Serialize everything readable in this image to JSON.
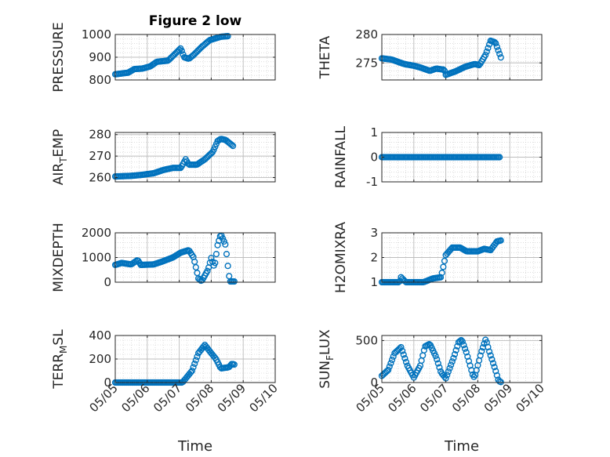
{
  "chart_data": [
    {
      "type": "scatter",
      "title": "Figure 2 low",
      "ylabel": "PRESSURE",
      "ylabel_parts": [
        [
          "PRESSURE",
          "n"
        ]
      ],
      "xlabel": "",
      "xlim": [
        0,
        5
      ],
      "ylim": [
        800,
        1000
      ],
      "yticks": [
        800,
        900,
        1000
      ],
      "xticks": [],
      "grid": true,
      "keyframes": [
        [
          0.0,
          825
        ],
        [
          0.4,
          832
        ],
        [
          0.6,
          848
        ],
        [
          0.85,
          850
        ],
        [
          1.1,
          860
        ],
        [
          1.3,
          880
        ],
        [
          1.65,
          885
        ],
        [
          1.85,
          912
        ],
        [
          2.05,
          940
        ],
        [
          2.15,
          900
        ],
        [
          2.3,
          893
        ],
        [
          2.45,
          910
        ],
        [
          2.7,
          945
        ],
        [
          2.95,
          975
        ],
        [
          3.3,
          990
        ],
        [
          3.55,
          993
        ]
      ]
    },
    {
      "type": "scatter",
      "title": "",
      "ylabel": "THETA",
      "ylabel_parts": [
        [
          "THETA",
          "n"
        ]
      ],
      "xlabel": "",
      "xlim": [
        0,
        5
      ],
      "ylim": [
        272,
        280
      ],
      "yticks": [
        275,
        280
      ],
      "xticks": [],
      "grid": true,
      "keyframes": [
        [
          0.0,
          275.8
        ],
        [
          0.3,
          275.6
        ],
        [
          0.5,
          275.2
        ],
        [
          0.7,
          274.8
        ],
        [
          1.0,
          274.5
        ],
        [
          1.2,
          274.2
        ],
        [
          1.5,
          273.6
        ],
        [
          1.7,
          274.0
        ],
        [
          1.95,
          273.8
        ],
        [
          2.0,
          272.9
        ],
        [
          2.3,
          273.5
        ],
        [
          2.6,
          274.3
        ],
        [
          2.9,
          274.8
        ],
        [
          3.05,
          274.6
        ],
        [
          3.25,
          276.5
        ],
        [
          3.4,
          278.9
        ],
        [
          3.55,
          278.6
        ],
        [
          3.75,
          275.5
        ]
      ]
    },
    {
      "type": "scatter",
      "title": "",
      "ylabel": "AIR_TEMP",
      "ylabel_parts": [
        [
          "AIR",
          "n"
        ],
        [
          "T",
          "sub"
        ],
        [
          "EMP",
          "n"
        ]
      ],
      "xlabel": "",
      "xlim": [
        0,
        5
      ],
      "ylim": [
        258,
        281
      ],
      "yticks": [
        260,
        270,
        280
      ],
      "xticks": [],
      "grid": true,
      "keyframes": [
        [
          0.0,
          260.5
        ],
        [
          0.5,
          260.8
        ],
        [
          0.8,
          261.2
        ],
        [
          1.2,
          262.0
        ],
        [
          1.5,
          263.5
        ],
        [
          1.8,
          264.5
        ],
        [
          2.05,
          264.5
        ],
        [
          2.2,
          268.5
        ],
        [
          2.3,
          266.0
        ],
        [
          2.55,
          266.0
        ],
        [
          2.8,
          268.5
        ],
        [
          3.05,
          272.0
        ],
        [
          3.2,
          277.0
        ],
        [
          3.3,
          278.0
        ],
        [
          3.45,
          277.5
        ],
        [
          3.7,
          274.5
        ]
      ]
    },
    {
      "type": "scatter",
      "title": "",
      "ylabel": "RAINFALL",
      "ylabel_parts": [
        [
          "RAINFALL",
          "n"
        ]
      ],
      "xlabel": "",
      "xlim": [
        0,
        5
      ],
      "ylim": [
        -1,
        1
      ],
      "yticks": [
        -1,
        0,
        1
      ],
      "xticks": [],
      "grid": true,
      "keyframes": [
        [
          0.0,
          0
        ],
        [
          3.7,
          0
        ]
      ]
    },
    {
      "type": "scatter",
      "title": "",
      "ylabel": "MIXDEPTH",
      "ylabel_parts": [
        [
          "MIXDEPTH",
          "n"
        ]
      ],
      "xlabel": "",
      "xlim": [
        0,
        5
      ],
      "ylim": [
        0,
        2000
      ],
      "yticks": [
        0,
        1000,
        2000
      ],
      "xticks": [],
      "grid": true,
      "keyframes": [
        [
          0.0,
          700
        ],
        [
          0.2,
          780
        ],
        [
          0.5,
          720
        ],
        [
          0.7,
          900
        ],
        [
          0.8,
          700
        ],
        [
          1.2,
          720
        ],
        [
          1.5,
          850
        ],
        [
          1.8,
          1000
        ],
        [
          2.05,
          1200
        ],
        [
          2.3,
          1300
        ],
        [
          2.45,
          1000
        ],
        [
          2.6,
          150
        ],
        [
          2.7,
          40
        ],
        [
          2.9,
          500
        ],
        [
          3.0,
          980
        ],
        [
          3.1,
          600
        ],
        [
          3.2,
          1500
        ],
        [
          3.3,
          1950
        ],
        [
          3.45,
          1500
        ],
        [
          3.55,
          300
        ],
        [
          3.6,
          30
        ],
        [
          3.75,
          30
        ]
      ]
    },
    {
      "type": "scatter",
      "title": "",
      "ylabel": "H2OMIXRA",
      "ylabel_parts": [
        [
          "H2OMIXRA",
          "n"
        ]
      ],
      "xlabel": "",
      "xlim": [
        0,
        5
      ],
      "ylim": [
        1,
        3
      ],
      "yticks": [
        1,
        2,
        3
      ],
      "xticks": [],
      "grid": true,
      "keyframes": [
        [
          0.0,
          1.0
        ],
        [
          0.55,
          1.0
        ],
        [
          0.6,
          1.2
        ],
        [
          0.75,
          1.0
        ],
        [
          1.3,
          1.0
        ],
        [
          1.6,
          1.15
        ],
        [
          1.85,
          1.2
        ],
        [
          2.0,
          2.1
        ],
        [
          2.2,
          2.4
        ],
        [
          2.45,
          2.4
        ],
        [
          2.65,
          2.25
        ],
        [
          3.0,
          2.25
        ],
        [
          3.2,
          2.35
        ],
        [
          3.4,
          2.3
        ],
        [
          3.6,
          2.65
        ],
        [
          3.75,
          2.7
        ]
      ]
    },
    {
      "type": "scatter",
      "title": "",
      "ylabel": "TERR_MSL",
      "ylabel_parts": [
        [
          "TERR",
          "n"
        ],
        [
          "M",
          "sub"
        ],
        [
          "SL",
          "n"
        ]
      ],
      "xlabel": "Time",
      "xlim": [
        0,
        5
      ],
      "ylim": [
        0,
        400
      ],
      "yticks": [
        0,
        200,
        400
      ],
      "xticks": [
        "05/05",
        "05/06",
        "05/07",
        "05/08",
        "05/09",
        "05/10"
      ],
      "grid": true,
      "keyframes": [
        [
          0.0,
          0
        ],
        [
          2.1,
          0
        ],
        [
          2.4,
          100
        ],
        [
          2.6,
          250
        ],
        [
          2.8,
          320
        ],
        [
          3.0,
          250
        ],
        [
          3.15,
          200
        ],
        [
          3.3,
          120
        ],
        [
          3.55,
          130
        ],
        [
          3.65,
          160
        ],
        [
          3.75,
          150
        ]
      ]
    },
    {
      "type": "scatter",
      "title": "",
      "ylabel": "SUN_FLUX",
      "ylabel_parts": [
        [
          "SUN",
          "n"
        ],
        [
          "F",
          "sub"
        ],
        [
          "LUX",
          "n"
        ]
      ],
      "xlabel": "Time",
      "xlim": [
        0,
        5
      ],
      "ylim": [
        0,
        560
      ],
      "yticks": [
        0,
        500
      ],
      "xticks": [
        "05/05",
        "05/06",
        "05/07",
        "05/08",
        "05/09",
        "05/10"
      ],
      "grid": true,
      "keyframes": [
        [
          0.0,
          80
        ],
        [
          0.2,
          150
        ],
        [
          0.4,
          350
        ],
        [
          0.6,
          420
        ],
        [
          0.8,
          200
        ],
        [
          1.0,
          60
        ],
        [
          1.2,
          200
        ],
        [
          1.35,
          430
        ],
        [
          1.5,
          460
        ],
        [
          1.7,
          300
        ],
        [
          1.85,
          120
        ],
        [
          2.0,
          50
        ],
        [
          2.25,
          300
        ],
        [
          2.4,
          480
        ],
        [
          2.5,
          510
        ],
        [
          2.65,
          350
        ],
        [
          2.85,
          80
        ],
        [
          2.9,
          60
        ],
        [
          3.1,
          350
        ],
        [
          3.25,
          520
        ],
        [
          3.35,
          380
        ],
        [
          3.55,
          150
        ],
        [
          3.65,
          20
        ],
        [
          3.75,
          0
        ]
      ]
    }
  ]
}
